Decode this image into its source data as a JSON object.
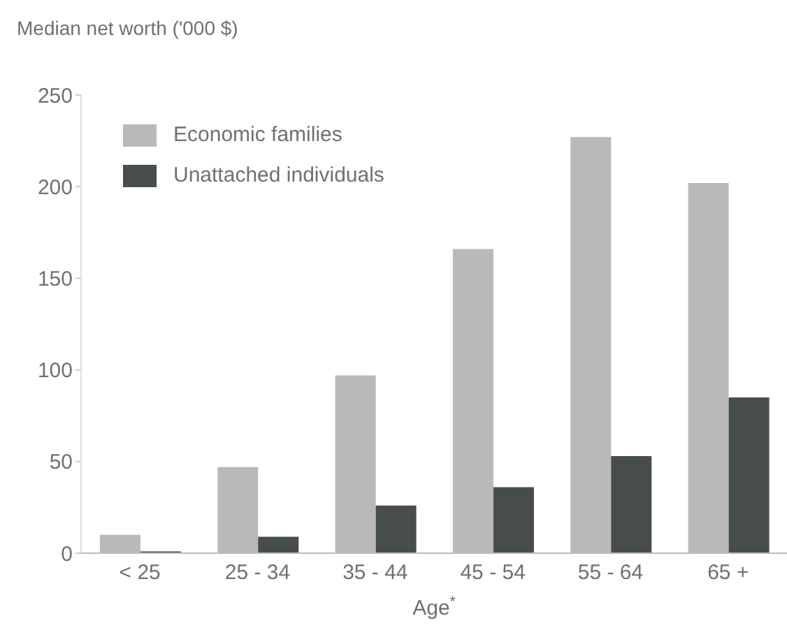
{
  "chart_data": {
    "type": "bar",
    "title": "Median net worth ('000 $)",
    "xlabel": "Age$^{*}$",
    "categories": [
      "< 25",
      "25 - 34",
      "35 - 44",
      "45 - 54",
      "55 - 64",
      "65 +"
    ],
    "series": [
      {
        "name": "Economic families",
        "color": "#b9b9b9",
        "values": [
          10,
          47,
          97,
          166,
          227,
          202
        ]
      },
      {
        "name": "Unattached individuals",
        "color": "#474d4a",
        "values": [
          1,
          9,
          26,
          36,
          53,
          85
        ]
      }
    ],
    "ylim": [
      0,
      250
    ],
    "yticks": [
      0,
      50,
      100,
      150,
      200,
      250
    ],
    "legend": "top left"
  }
}
